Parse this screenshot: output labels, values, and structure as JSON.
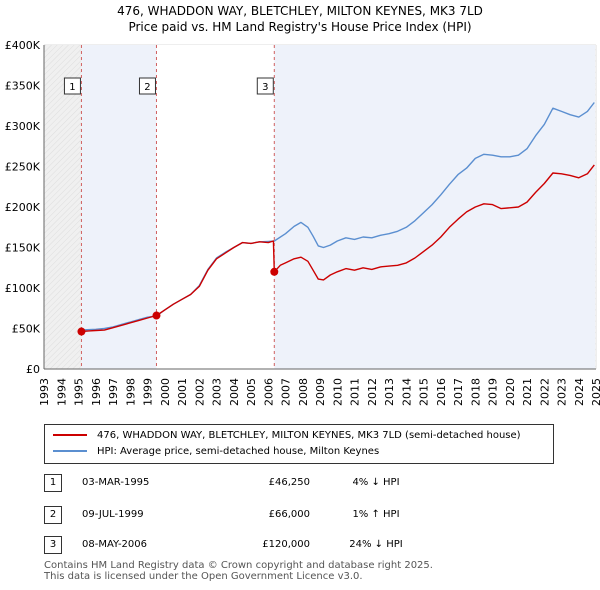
{
  "title_line1": "476, WHADDON WAY, BLETCHLEY, MILTON KEYNES, MK3 7LD",
  "title_line2": "Price paid vs. HM Land Registry's House Price Index (HPI)",
  "chart_data": {
    "type": "line",
    "title": "476, WHADDON WAY, BLETCHLEY, MILTON KEYNES, MK3 7LD",
    "subtitle": "Price paid vs. HM Land Registry's House Price Index (HPI)",
    "xlabel": "",
    "ylabel": "",
    "xlim": [
      1993,
      2025
    ],
    "ylim": [
      0,
      400000
    ],
    "x_ticks": [
      1993,
      1994,
      1995,
      1996,
      1997,
      1998,
      1999,
      2000,
      2001,
      2002,
      2003,
      2004,
      2005,
      2006,
      2007,
      2008,
      2009,
      2010,
      2011,
      2012,
      2013,
      2014,
      2015,
      2016,
      2017,
      2018,
      2019,
      2020,
      2021,
      2022,
      2023,
      2024,
      2025
    ],
    "y_ticks": [
      0,
      50000,
      100000,
      150000,
      200000,
      250000,
      300000,
      350000,
      400000
    ],
    "y_tick_labels": [
      "£0",
      "£50K",
      "£100K",
      "£150K",
      "£200K",
      "£250K",
      "£300K",
      "£350K",
      "£400K"
    ],
    "series": [
      {
        "name": "476, WHADDON WAY, BLETCHLEY, MILTON KEYNES, MK3 7LD (semi-detached house)",
        "color": "#cc0000",
        "points": [
          [
            1995.17,
            46250
          ],
          [
            1995.6,
            47000
          ],
          [
            1996,
            47500
          ],
          [
            1996.5,
            48000
          ],
          [
            1997,
            51000
          ],
          [
            1997.5,
            54000
          ],
          [
            1998,
            57000
          ],
          [
            1998.5,
            60000
          ],
          [
            1999,
            63000
          ],
          [
            1999.52,
            66000
          ],
          [
            2000,
            73000
          ],
          [
            2000.5,
            80000
          ],
          [
            2001,
            86000
          ],
          [
            2001.5,
            92000
          ],
          [
            2002,
            102000
          ],
          [
            2002.5,
            122000
          ],
          [
            2003,
            136000
          ],
          [
            2003.5,
            143000
          ],
          [
            2004,
            150000
          ],
          [
            2004.5,
            156000
          ],
          [
            2005,
            155000
          ],
          [
            2005.5,
            157000
          ],
          [
            2006,
            156000
          ],
          [
            2006.3,
            158000
          ],
          [
            2006.35,
            120000
          ],
          [
            2006.7,
            128000
          ],
          [
            2007,
            131000
          ],
          [
            2007.5,
            136000
          ],
          [
            2007.9,
            138000
          ],
          [
            2008.3,
            133000
          ],
          [
            2008.6,
            122000
          ],
          [
            2008.9,
            111000
          ],
          [
            2009.2,
            110000
          ],
          [
            2009.6,
            116000
          ],
          [
            2010,
            120000
          ],
          [
            2010.5,
            124000
          ],
          [
            2011,
            122000
          ],
          [
            2011.5,
            125000
          ],
          [
            2012,
            123000
          ],
          [
            2012.5,
            126000
          ],
          [
            2013,
            127000
          ],
          [
            2013.5,
            128000
          ],
          [
            2014,
            131000
          ],
          [
            2014.5,
            137000
          ],
          [
            2015,
            145000
          ],
          [
            2015.5,
            153000
          ],
          [
            2016,
            163000
          ],
          [
            2016.5,
            175000
          ],
          [
            2017,
            185000
          ],
          [
            2017.5,
            194000
          ],
          [
            2018,
            200000
          ],
          [
            2018.5,
            204000
          ],
          [
            2019,
            203000
          ],
          [
            2019.5,
            198000
          ],
          [
            2020,
            199000
          ],
          [
            2020.5,
            200000
          ],
          [
            2021,
            206000
          ],
          [
            2021.5,
            218000
          ],
          [
            2022,
            229000
          ],
          [
            2022.5,
            242000
          ],
          [
            2023,
            241000
          ],
          [
            2023.5,
            239000
          ],
          [
            2024,
            236000
          ],
          [
            2024.5,
            241000
          ],
          [
            2024.9,
            252000
          ]
        ]
      },
      {
        "name": "HPI: Average price, semi-detached house, Milton Keynes",
        "color": "#5b8fd0",
        "points": [
          [
            1995,
            48000
          ],
          [
            1995.5,
            48500
          ],
          [
            1996,
            49000
          ],
          [
            1996.5,
            50000
          ],
          [
            1997,
            52000
          ],
          [
            1997.5,
            55000
          ],
          [
            1998,
            58000
          ],
          [
            1998.5,
            61000
          ],
          [
            1999,
            64000
          ],
          [
            1999.52,
            65500
          ],
          [
            2000,
            73000
          ],
          [
            2000.5,
            80000
          ],
          [
            2001,
            86000
          ],
          [
            2001.5,
            92000
          ],
          [
            2002,
            103000
          ],
          [
            2002.5,
            123000
          ],
          [
            2003,
            137000
          ],
          [
            2003.5,
            144000
          ],
          [
            2004,
            150000
          ],
          [
            2004.5,
            156000
          ],
          [
            2005,
            155000
          ],
          [
            2005.5,
            157000
          ],
          [
            2006,
            157500
          ],
          [
            2006.35,
            158000
          ],
          [
            2007,
            167000
          ],
          [
            2007.5,
            176000
          ],
          [
            2007.9,
            181000
          ],
          [
            2008.3,
            175000
          ],
          [
            2008.6,
            164000
          ],
          [
            2008.9,
            152000
          ],
          [
            2009.2,
            150000
          ],
          [
            2009.6,
            153000
          ],
          [
            2010,
            158000
          ],
          [
            2010.5,
            162000
          ],
          [
            2011,
            160000
          ],
          [
            2011.5,
            163000
          ],
          [
            2012,
            162000
          ],
          [
            2012.5,
            165000
          ],
          [
            2013,
            167000
          ],
          [
            2013.5,
            170000
          ],
          [
            2014,
            175000
          ],
          [
            2014.5,
            183000
          ],
          [
            2015,
            193000
          ],
          [
            2015.5,
            203000
          ],
          [
            2016,
            215000
          ],
          [
            2016.5,
            228000
          ],
          [
            2017,
            240000
          ],
          [
            2017.5,
            248000
          ],
          [
            2018,
            260000
          ],
          [
            2018.5,
            265000
          ],
          [
            2019,
            264000
          ],
          [
            2019.5,
            262000
          ],
          [
            2020,
            262000
          ],
          [
            2020.5,
            264000
          ],
          [
            2021,
            272000
          ],
          [
            2021.5,
            288000
          ],
          [
            2022,
            302000
          ],
          [
            2022.5,
            322000
          ],
          [
            2023,
            318000
          ],
          [
            2023.5,
            314000
          ],
          [
            2024,
            311000
          ],
          [
            2024.5,
            318000
          ],
          [
            2024.9,
            329000
          ]
        ]
      }
    ],
    "transactions": [
      {
        "label": "1",
        "x": 1995.17,
        "y": 46250
      },
      {
        "label": "2",
        "x": 1999.52,
        "y": 66000
      },
      {
        "label": "3",
        "x": 2006.35,
        "y": 120000
      }
    ],
    "legend_position": "bottom"
  },
  "legend": {
    "property_label": "476, WHADDON WAY, BLETCHLEY, MILTON KEYNES, MK3 7LD (semi-detached house)",
    "hpi_label": "HPI: Average price, semi-detached house, Milton Keynes",
    "property_color": "#cc0000",
    "hpi_color": "#5b8fd0"
  },
  "transactions_table": [
    {
      "num": "1",
      "date": "03-MAR-1995",
      "price": "£46,250",
      "hpi": "4% ↓ HPI"
    },
    {
      "num": "2",
      "date": "09-JUL-1999",
      "price": "£66,000",
      "hpi": "1% ↑ HPI"
    },
    {
      "num": "3",
      "date": "08-MAY-2006",
      "price": "£120,000",
      "hpi": "24% ↓ HPI"
    }
  ],
  "footer": {
    "line1": "Contains HM Land Registry data © Crown copyright and database right 2025.",
    "line2": "This data is licensed under the Open Government Licence v3.0."
  }
}
